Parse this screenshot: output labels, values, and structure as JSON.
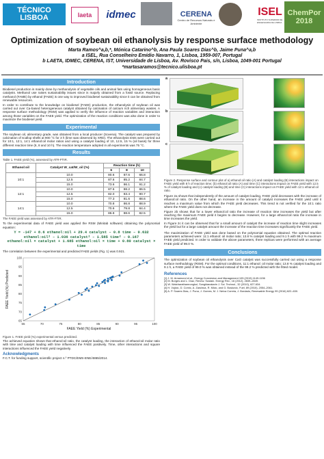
{
  "header": {
    "logos": {
      "tecnico_line1": "TÉCNICO",
      "tecnico_line2": "LISBOA",
      "laeta": "laeta",
      "idmec": "idmec",
      "cerena": "CERENA",
      "cerena_sub": "Centro de Recursos Naturais e Ambiente",
      "isel": "ISEL",
      "isel_sub": "INSTITUTO SUPERIOR DE ENGENHARIA DE LISBOA",
      "chempor_1": "ChemPor",
      "chempor_2": "2018"
    },
    "title": "Optimization of soybean oil ethanolysis by response surface methodology",
    "authors_line": "Marta Ramos^a,b,*, Mónica Catarino^b, Ana Paula Soares Dias^b, Jaime Puna^a,b",
    "affiliation_a": "a ISEL, Rua Conselheiro Emídio Navarro, 1, Lisboa, 1959-007, Portugal",
    "affiliation_b": "b LAETA, IDMEC, CERENA, IST, Universidade de Lisboa, Av. Rovisco Pais, s/n, Lisboa, 1049-001 Portugal",
    "email": "*martasaramos@tecnico.ulisboa.pt"
  },
  "intro": {
    "heading": "Introduction",
    "p1": "Biodiesel production is mainly done by methanolysis of vegetable oils and animal fats using homogeneous basic catalysts. Methanol use raises sustainability issues since is majorly obtained from a fossil source. Replacing methanol (FAME) by ethanol (FAEE) is one way to improved biodiesel sustainability since it can be obtained from renewable resources.",
    "p2": "In order to contribute to the knowledge on biodiesel (FAEE) production, the ethanolysis of soybean oil was carried out over Ca-based heterogeneous catalyst obtained by calcination of calcium rich alimentary wastes. A response surface methodology (RSM) was applied to verify the influence of reaction variables and interaction among those variables on the FAEE yield. The optimization of the reaction conditions was also done in order to maximize the biodiesel yield."
  },
  "experimental": {
    "heading": "Experimental",
    "p1": "The soybean oil, alimentary grade, was obtained from a local producer (Sovena). The catalyst was prepared by calcination of scallop shells at 900 °C for 3 h (lime was observed by XRD). The ethanolysis tests were carried out for 10:1, 12:1, 14:1 ethanol:oil molar ratios and using a catalyst loading of 10, 12.5, 15 % (oil basis) for three different reaction time (6, 8 and 10 h). The reaction temperature adopted in all experiments was 75 °C."
  },
  "results": {
    "heading": "Results",
    "table_caption": "Table 1. FAEE yield (%), assessed by ATR-FTIR.",
    "table_headers": {
      "ratio": "Ethanol:oil",
      "catalyst": "Catalyst W_cat/W_oil (%)",
      "time": "Reaction time (h)",
      "t6": "6",
      "t8": "8",
      "t10": "10"
    },
    "table_rows": [
      {
        "ratio": "10:1",
        "cat": "10.0",
        "t6": "80.6",
        "t8": "87.6",
        "t10": "66.8"
      },
      {
        "ratio": "",
        "cat": "12.5",
        "t6": "87.6",
        "t8": "85.2",
        "t10": "84.7"
      },
      {
        "ratio": "",
        "cat": "15.0",
        "t6": "73.6",
        "t8": "86.1",
        "t10": "91.2"
      },
      {
        "ratio": "12:1",
        "cat": "10.0",
        "t6": "87.6",
        "t8": "88.2",
        "t10": "86.5"
      },
      {
        "ratio": "",
        "cat": "12.5",
        "t6": "82.0",
        "t8": "83.4",
        "t10": "90.7"
      },
      {
        "ratio": "",
        "cat": "15.0",
        "t6": "77.3",
        "t8": "81.6",
        "t10": "88.6"
      },
      {
        "ratio": "14:1",
        "cat": "10.0",
        "t6": "70.8",
        "t8": "86.8",
        "t10": "88.9"
      },
      {
        "ratio": "",
        "cat": "12.5",
        "t6": "70.6",
        "t8": "79.8",
        "t10": "84.4"
      },
      {
        "ratio": "",
        "cat": "15.0",
        "t6": "86.8",
        "t8": "88.6",
        "t10": "82.5"
      }
    ],
    "table_note": "The FAEE yield was assessed by ATR-FTIR.",
    "model_text": "To the experimental data of FAEE yield was applied the RSM (Minitab software) obtaining the polynomial equation:",
    "eq1": "Y = -147 + 8.6 ethanol:oil + 29.4 catalyst – 0.8 time – 0.632",
    "eq2": "ethanol:oil² – 1.036 catalyst² – 1.585 time² – 0.167",
    "eq3": "ethanol:oil × catalyst + 1.685 ethanol:oil × time + 0.80 catalyst × time",
    "corr_text": "The correlation between the experimental and predicted FAEE yields (Fig. 1) was 0.921.",
    "fig1_caption": "Figure 1. FAEE yield (%) experimental versus predicted.",
    "eq_discussion": "The achieved equation shows that ethanol:oil ratio, the catalyst loading, the interaction of ethanol:oil molar ratio with time and catalyst loading with time influenced the FAEE positively. Time, other interactions and square interactions influenced the FAEE yield negatively."
  },
  "ack": {
    "heading": "Acknowledgments",
    "text": "F.C.T. for funding support, scientific project n.º PTDC/EMS-ENE/4865/2014."
  },
  "figure2": {
    "label_a": "a",
    "label_b": "b",
    "label_c": "c",
    "caption": "Figure 2. Response surface and contour plot of a) ethanol:oil ratio (A) and catalyst loading (B) interactions impact on FAEE yield with 8 h of reaction time; (b) ethanol:oil ratio (A) and time (C) interactions impact on FAEE yield with 12.5 % of catalyst loading and (c) catalyst loading (B) and time (C) interactions impact on FAEE yield with 12:1 ethanol:oil ratio."
  },
  "discussion": {
    "p1": "Figure 2a shows that independently of the amount of catalyst loading, FAEE yield decreases with the increase of ethanol:oil ratio. On the other hand, an increase in the amount of catalyst increases the FAEE yield until it reaches a maximum value from which the FAEE yield decreases. This trend is not verified for the 10:1 ratio where the FAEE yield does not decrease.",
    "p2": "Figure 2b shows that for a lower ethanol:oil ratio the increase of reaction time increases the yield but after reaching the maximum FAEE yield it begins to decrease. However, for a large ethanol:oil ratio the increase in time increases the yield.",
    "p3": "In Figure 2c it can be observed that for a small amount of catalyst the increase of reaction time slight increases the yield but for a large catalyst amount the increase of the reaction time increases significantly the FAEE yield.",
    "p4": "The maximization of FAEE yield was done based on the polynomial equation obtained. The optimal reaction parameters achieved were: 11:1 ethanol: oil molar ratio; 13.8 % catalyst loading and 9.1 h with 99.2 % maximum FAEE yield predicted. In order to validate the above parameters, three replicas were performed with an average FAEE yield of 99.0 %."
  },
  "conclusions": {
    "heading": "Conclusions",
    "text": "The optimization of soybean oil ethanolysis over CaO catalyst was successfully carried out using a response surface methodology (RSM). For the optimal conditions, 11:1 ethanol: oil molar ratio; 13.8 % catalyst loading and 9.1 h, a FAEE yield of 99.0 % was obtained instead of the 99.2 % predicted with the fitted model."
  },
  "references": {
    "heading": "References",
    "items": [
      "[1] J. M. Arnamond et al., Energy Conversion and Management 105 (2015) 1149-1156",
      "[2] M. Borges and L. Díaz, Renew. Sustain. Energy Rev., 16 (2012), 2839–2849.",
      "[3] W. Watcharathamrongkul, Songklanakarin J. Sci. Technol., 32 (2010), 627-634.",
      "[4] H. Vujicic, D. Comic, A. Zarubica, R. Micic, and G. Boskovic, Fuel, 89 (2010), 2054–2061.",
      "[5] A. P. Soares Dias, J. Puna, J. Gomes, M. J. Neiva Correia, J. Bordado, Renewable Energy 99 (2016) 622–630."
    ]
  },
  "chart_data": {
    "type": "scatter",
    "title": "",
    "xlabel": "FAEE Yield (%) Experimental",
    "ylabel": "FAEE Yield (%) Predicted",
    "xlim": [
      65,
      100
    ],
    "ylim": [
      65,
      100
    ],
    "x_ticks": [
      "65",
      "70",
      "75",
      "80",
      "85",
      "90",
      "95",
      "100"
    ],
    "y_ticks": [
      "65",
      "70",
      "75",
      "80",
      "85",
      "90",
      "95",
      "100"
    ],
    "points": [
      {
        "x": 66.8,
        "y": 68.5
      },
      {
        "x": 70.6,
        "y": 71.0
      },
      {
        "x": 70.8,
        "y": 72.5
      },
      {
        "x": 73.6,
        "y": 74.2
      },
      {
        "x": 77.3,
        "y": 76.8
      },
      {
        "x": 79.8,
        "y": 80.5
      },
      {
        "x": 80.6,
        "y": 79.5
      },
      {
        "x": 81.6,
        "y": 82.4
      },
      {
        "x": 82.0,
        "y": 83.1
      },
      {
        "x": 82.5,
        "y": 81.7
      },
      {
        "x": 83.4,
        "y": 84.0
      },
      {
        "x": 84.4,
        "y": 84.8
      },
      {
        "x": 84.7,
        "y": 85.9
      },
      {
        "x": 85.2,
        "y": 84.4
      },
      {
        "x": 86.1,
        "y": 86.6
      },
      {
        "x": 86.5,
        "y": 87.3
      },
      {
        "x": 86.8,
        "y": 86.0
      },
      {
        "x": 86.8,
        "y": 87.8
      },
      {
        "x": 87.6,
        "y": 86.9
      },
      {
        "x": 87.6,
        "y": 88.5
      },
      {
        "x": 87.6,
        "y": 87.4
      },
      {
        "x": 88.2,
        "y": 88.9
      },
      {
        "x": 88.6,
        "y": 89.3
      },
      {
        "x": 88.6,
        "y": 87.7
      },
      {
        "x": 88.9,
        "y": 89.6
      },
      {
        "x": 90.7,
        "y": 90.1
      },
      {
        "x": 91.2,
        "y": 92.0
      },
      {
        "x": 96.0,
        "y": 96.5
      },
      {
        "x": 97.0,
        "y": 98.5
      },
      {
        "x": 98.0,
        "y": 97.2
      }
    ],
    "trendline": true,
    "marker_color": "#1c6fb8"
  }
}
